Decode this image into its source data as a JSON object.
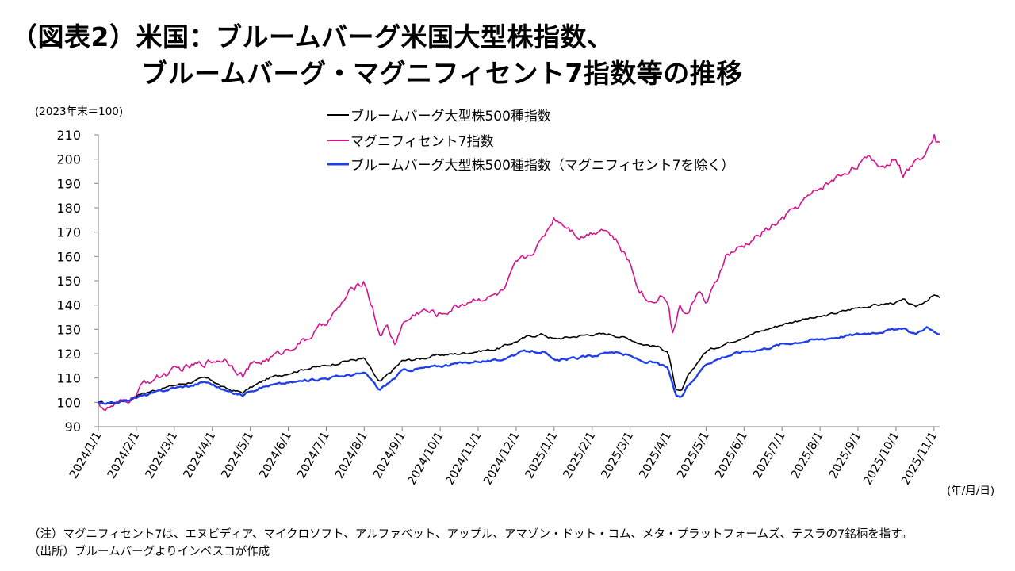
{
  "title_line1": "（図表2）米国：ブルームバーグ米国大型株指数、",
  "title_line2": "ブルームバーグ・マグニフィセント7指数等の推移",
  "colors": {
    "black_series": "#000000",
    "magenta_series": "#d4148c",
    "blue_series": "#1f3fe8",
    "axis": "#808080"
  },
  "chart_data": {
    "type": "line",
    "title": "",
    "ylabel": "(2023年末＝100)",
    "xlabel": "(年/月/日)",
    "ylim": [
      90,
      210
    ],
    "yticks": [
      90,
      100,
      110,
      120,
      130,
      140,
      150,
      160,
      170,
      180,
      190,
      200,
      210
    ],
    "categories": [
      "2024/1/1",
      "2024/2/1",
      "2024/3/1",
      "2024/4/1",
      "2024/5/1",
      "2024/6/1",
      "2024/7/1",
      "2024/8/1",
      "2024/9/1",
      "2024/10/1",
      "2024/11/1",
      "2024/12/1",
      "2025/1/1",
      "2025/2/1",
      "2025/3/1",
      "2025/4/1",
      "2025/5/1",
      "2025/6/1",
      "2025/7/1",
      "2025/8/1",
      "2025/9/1",
      "2025/10/1",
      "2025/11/1"
    ],
    "series": [
      {
        "name": "ブルームバーグ大型株500種指数",
        "x": [
          0,
          0.2,
          0.5,
          0.8,
          1,
          1.5,
          2,
          2.5,
          2.8,
          3,
          3.3,
          3.5,
          3.8,
          4,
          4.5,
          5,
          5.5,
          6,
          6.5,
          7,
          7.2,
          7.4,
          7.8,
          8,
          8.5,
          9,
          9.5,
          10,
          10.5,
          11,
          11.3,
          11.7,
          12,
          12.5,
          13,
          13.5,
          14,
          14.3,
          14.7,
          15,
          15.1,
          15.2,
          15.35,
          15.5,
          15.8,
          16,
          16.5,
          17,
          17.5,
          18,
          18.5,
          19,
          19.5,
          20,
          20.5,
          21,
          21.2,
          21.5,
          21.8,
          22,
          22.15
        ],
        "values": [
          100,
          99.5,
          100,
          101,
          103,
          105,
          107,
          108.5,
          110,
          109,
          106,
          105,
          104,
          106,
          110,
          112,
          114,
          115,
          117,
          118,
          113,
          108,
          114,
          117,
          118,
          119.5,
          120,
          121,
          122,
          125,
          127,
          128,
          126,
          127,
          128,
          128,
          126,
          124,
          123,
          121,
          113,
          105,
          104,
          110,
          117,
          121,
          124,
          127,
          129.5,
          132,
          134,
          135,
          137,
          139,
          140,
          141,
          142,
          139,
          142,
          144,
          143
        ]
      },
      {
        "name": "マグニフィセント7指数",
        "x": [
          0,
          0.2,
          0.5,
          0.8,
          1,
          1.2,
          1.5,
          2,
          2.5,
          3,
          3.3,
          3.5,
          3.8,
          4,
          4.5,
          5,
          5.5,
          6,
          6.3,
          6.6,
          7,
          7.2,
          7.4,
          7.6,
          7.8,
          8,
          8.5,
          9,
          9.5,
          10,
          10.3,
          10.7,
          11,
          11.3,
          11.6,
          12,
          12.4,
          12.7,
          13,
          13.3,
          13.6,
          14,
          14.2,
          14.5,
          14.8,
          15,
          15.1,
          15.3,
          15.5,
          15.8,
          16,
          16.3,
          16.5,
          17,
          17.5,
          18,
          18.5,
          19,
          19.5,
          20,
          20.3,
          20.7,
          21,
          21.2,
          21.4,
          21.7,
          22,
          22.05,
          22.15
        ],
        "values": [
          100,
          97,
          99,
          101,
          103,
          108,
          110,
          113,
          115,
          117,
          118,
          116,
          111,
          115,
          118,
          122,
          126,
          133,
          138,
          145,
          150,
          140,
          128,
          131,
          124,
          132,
          138,
          136,
          140,
          143,
          143,
          146,
          157,
          160,
          165,
          176,
          172,
          168,
          170,
          172,
          167,
          157,
          148,
          141,
          144,
          142,
          127,
          140,
          135,
          147,
          140,
          150,
          160,
          164,
          170,
          175,
          182,
          188,
          193,
          198,
          200,
          197,
          201,
          193,
          197,
          202,
          210,
          208,
          207
        ]
      },
      {
        "name": "ブルームバーグ大型株500種指数（マグニフィセント7を除く）",
        "x": [
          0,
          0.2,
          0.5,
          0.8,
          1,
          1.5,
          2,
          2.5,
          2.8,
          3,
          3.3,
          3.5,
          3.8,
          4,
          4.5,
          5,
          5.5,
          6,
          6.5,
          7,
          7.2,
          7.4,
          7.8,
          8,
          8.5,
          9,
          9.5,
          10,
          10.5,
          11,
          11.3,
          11.7,
          12,
          12.5,
          13,
          13.5,
          14,
          14.3,
          14.7,
          15,
          15.1,
          15.2,
          15.35,
          15.5,
          15.8,
          16,
          16.5,
          17,
          17.5,
          18,
          18.5,
          19,
          19.5,
          20,
          20.5,
          21,
          21.2,
          21.5,
          21.8,
          22,
          22.15
        ],
        "values": [
          100,
          99,
          100,
          101,
          102,
          104,
          106,
          107,
          108.5,
          107.5,
          105,
          104,
          103,
          105,
          107,
          108,
          109,
          110,
          111,
          112,
          109,
          105,
          110,
          113,
          114,
          115,
          116,
          117,
          117,
          120,
          121,
          121,
          117,
          118,
          119,
          121,
          119,
          117,
          116,
          114,
          108,
          103,
          102,
          106,
          112,
          116,
          119,
          121,
          122,
          124,
          125,
          126,
          127,
          128,
          129,
          130,
          130,
          128,
          131,
          129,
          128
        ]
      }
    ],
    "legend": [
      "ブルームバーグ大型株500種指数",
      "マグニフィセント7指数",
      "ブルームバーグ大型株500種指数（マグニフィセント7を除く）"
    ],
    "legend_position": "top-center",
    "grid": false
  },
  "notes": {
    "note1": "（注）マグニフィセント7は、エヌビディア、マイクロソフト、アルファベット、アップル、アマゾン・ドット・コム、メタ・プラットフォームズ、テスラの7銘柄を指す。",
    "note2": "（出所）ブルームバーグよりインベスコが作成"
  }
}
